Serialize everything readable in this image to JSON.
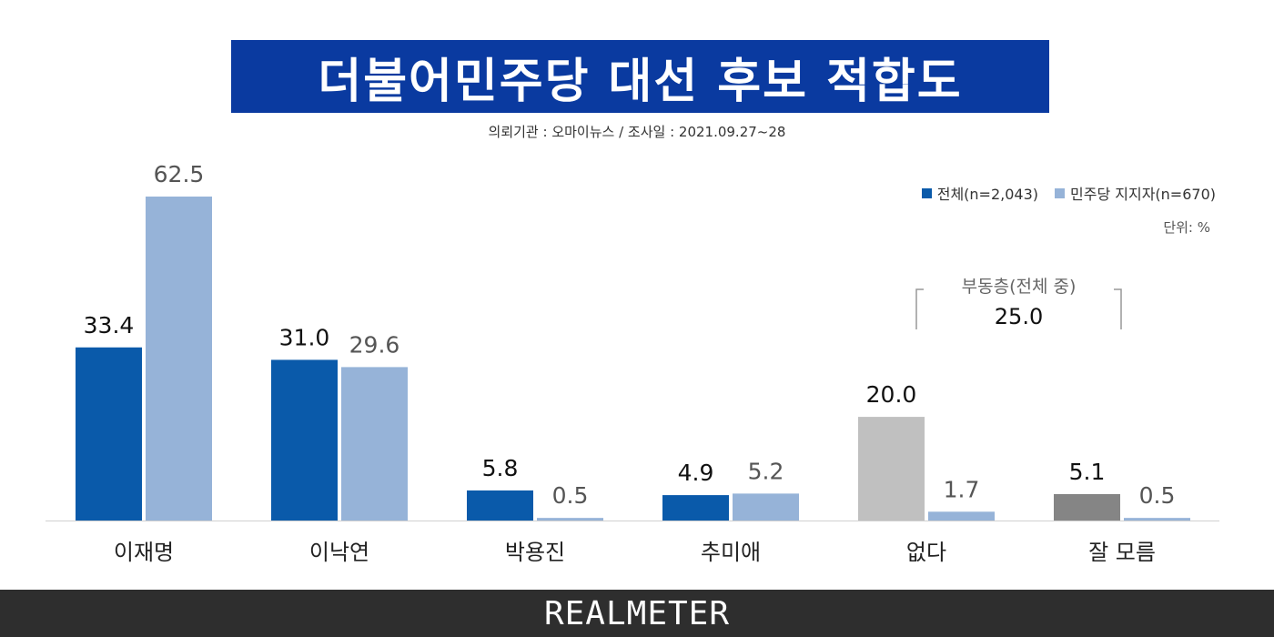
{
  "title": "더불어민주당 대선 후보 적합도",
  "subtitle": "의뢰기관 : 오마이뉴스  /  조사일 : 2021.09.27~28",
  "unit_label": "단위: %",
  "footer_logo": "REALMETER",
  "colors": {
    "title_bg": "#0a3aa0",
    "series_total": "#0a5aaa",
    "series_supporters": "#96b3d8",
    "none_total": "#c0c0c0",
    "unknown_total": "#858585",
    "footer_bg": "#2e2e2e"
  },
  "chart_data": {
    "type": "bar",
    "categories": [
      "이재명",
      "이낙연",
      "박용진",
      "추미애",
      "없다",
      "잘 모름"
    ],
    "series": [
      {
        "name": "전체(n=2,043)",
        "values": [
          33.4,
          31.0,
          5.8,
          4.9,
          20.0,
          5.1
        ],
        "labels": [
          "33.4",
          "31.0",
          "5.8",
          "4.9",
          "20.0",
          "5.1"
        ]
      },
      {
        "name": "민주당 지지자(n=670)",
        "values": [
          62.5,
          29.6,
          0.5,
          5.2,
          1.7,
          0.5
        ],
        "labels": [
          "62.5",
          "29.6",
          "0.5",
          "5.2",
          "1.7",
          "0.5"
        ]
      }
    ],
    "legend_position": "top-right",
    "ylim": [
      0,
      62.5
    ],
    "grid": false,
    "annotation": {
      "label": "부동층(전체 중)",
      "value": "25.0"
    }
  }
}
